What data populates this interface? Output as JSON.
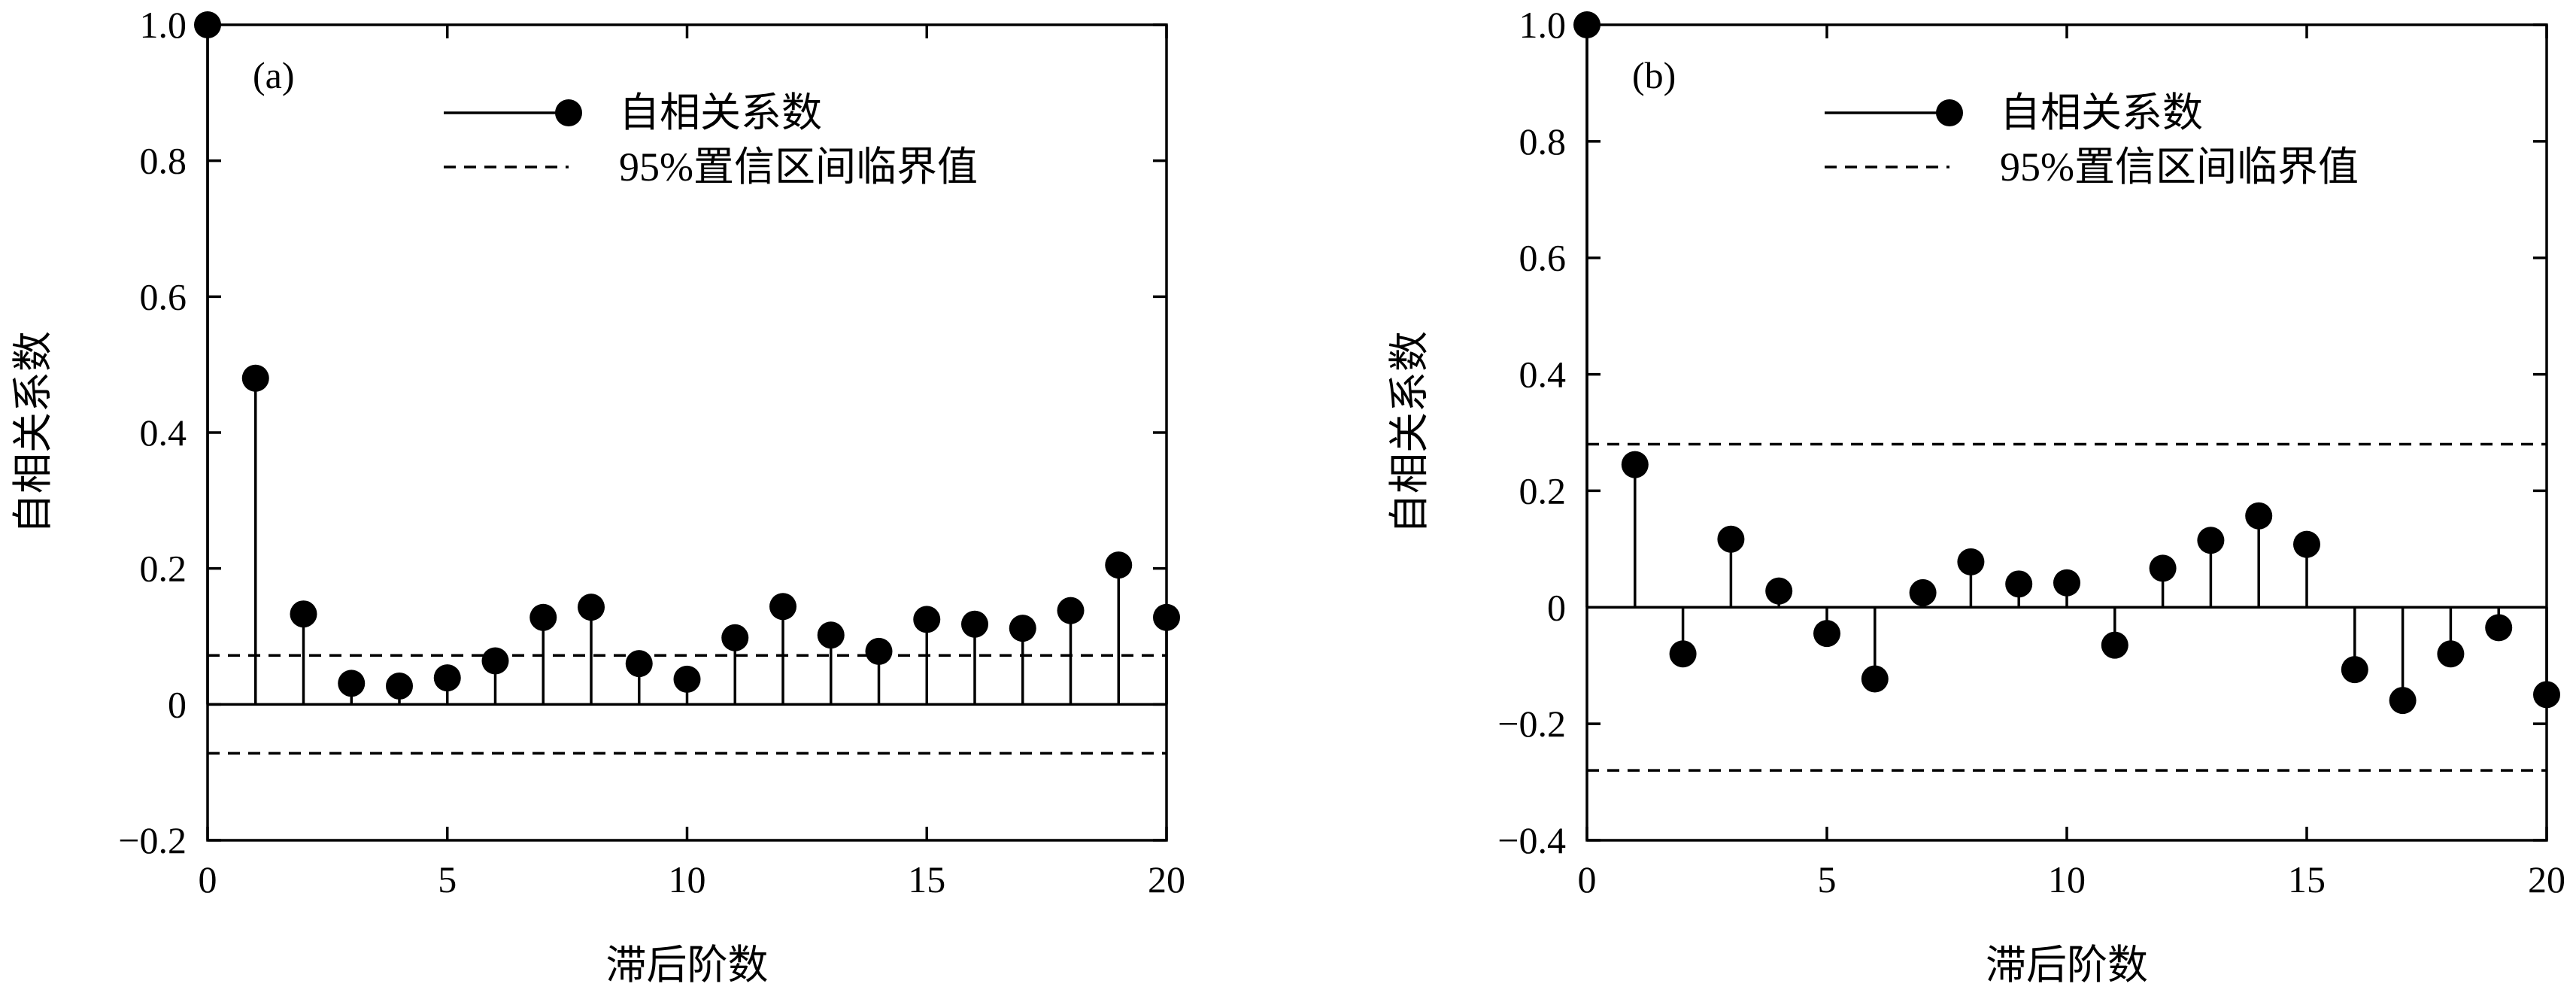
{
  "chart_data": [
    {
      "type": "stem",
      "panel_label": "(a)",
      "xlabel": "滞后阶数",
      "ylabel": "自相关系数",
      "xlim": [
        0,
        20
      ],
      "ylim": [
        -0.2,
        1.0
      ],
      "xticks": [
        0,
        5,
        10,
        15,
        20
      ],
      "xtick_labels": [
        "0",
        "5",
        "10",
        "15",
        "20"
      ],
      "yticks": [
        -0.2,
        0,
        0.2,
        0.4,
        0.6,
        0.8,
        1.0
      ],
      "ytick_labels": [
        "−0.2",
        "0",
        "0.2",
        "0.4",
        "0.6",
        "0.8",
        "1.0"
      ],
      "legend_position": "top-center",
      "grid": false,
      "series": [
        {
          "name": "自相关系数",
          "marker": "filled-circle",
          "x": [
            0,
            1,
            2,
            3,
            4,
            5,
            6,
            7,
            8,
            9,
            10,
            11,
            12,
            13,
            14,
            15,
            16,
            17,
            18,
            19,
            20
          ],
          "values": [
            1.0,
            0.48,
            0.133,
            0.031,
            0.027,
            0.039,
            0.064,
            0.128,
            0.143,
            0.06,
            0.037,
            0.098,
            0.144,
            0.102,
            0.078,
            0.125,
            0.118,
            0.112,
            0.138,
            0.205,
            0.128
          ]
        }
      ],
      "confidence_bounds": {
        "name": "95%置信区间临界值",
        "upper": 0.072,
        "lower": -0.072
      }
    },
    {
      "type": "stem",
      "panel_label": "(b)",
      "xlabel": "滞后阶数",
      "ylabel": "自相关系数",
      "xlim": [
        0,
        20
      ],
      "ylim": [
        -0.4,
        1.0
      ],
      "xticks": [
        0,
        5,
        10,
        15,
        20
      ],
      "xtick_labels": [
        "0",
        "5",
        "10",
        "15",
        "20"
      ],
      "yticks": [
        -0.4,
        -0.2,
        0,
        0.2,
        0.4,
        0.6,
        0.8,
        1.0
      ],
      "ytick_labels": [
        "−0.4",
        "−0.2",
        "0",
        "0.2",
        "0.4",
        "0.6",
        "0.8",
        "1.0"
      ],
      "legend_position": "top-center",
      "grid": false,
      "series": [
        {
          "name": "自相关系数",
          "marker": "filled-circle",
          "x": [
            0,
            1,
            2,
            3,
            4,
            5,
            6,
            7,
            8,
            9,
            10,
            11,
            12,
            13,
            14,
            15,
            16,
            17,
            18,
            19,
            20
          ],
          "values": [
            1.0,
            0.245,
            -0.08,
            0.117,
            0.028,
            -0.045,
            -0.123,
            0.025,
            0.078,
            0.04,
            0.042,
            -0.065,
            0.067,
            0.115,
            0.157,
            0.108,
            -0.107,
            -0.16,
            -0.08,
            -0.035,
            -0.15
          ]
        }
      ],
      "confidence_bounds": {
        "name": "95%置信区间临界值",
        "upper": 0.28,
        "lower": -0.28
      }
    }
  ]
}
